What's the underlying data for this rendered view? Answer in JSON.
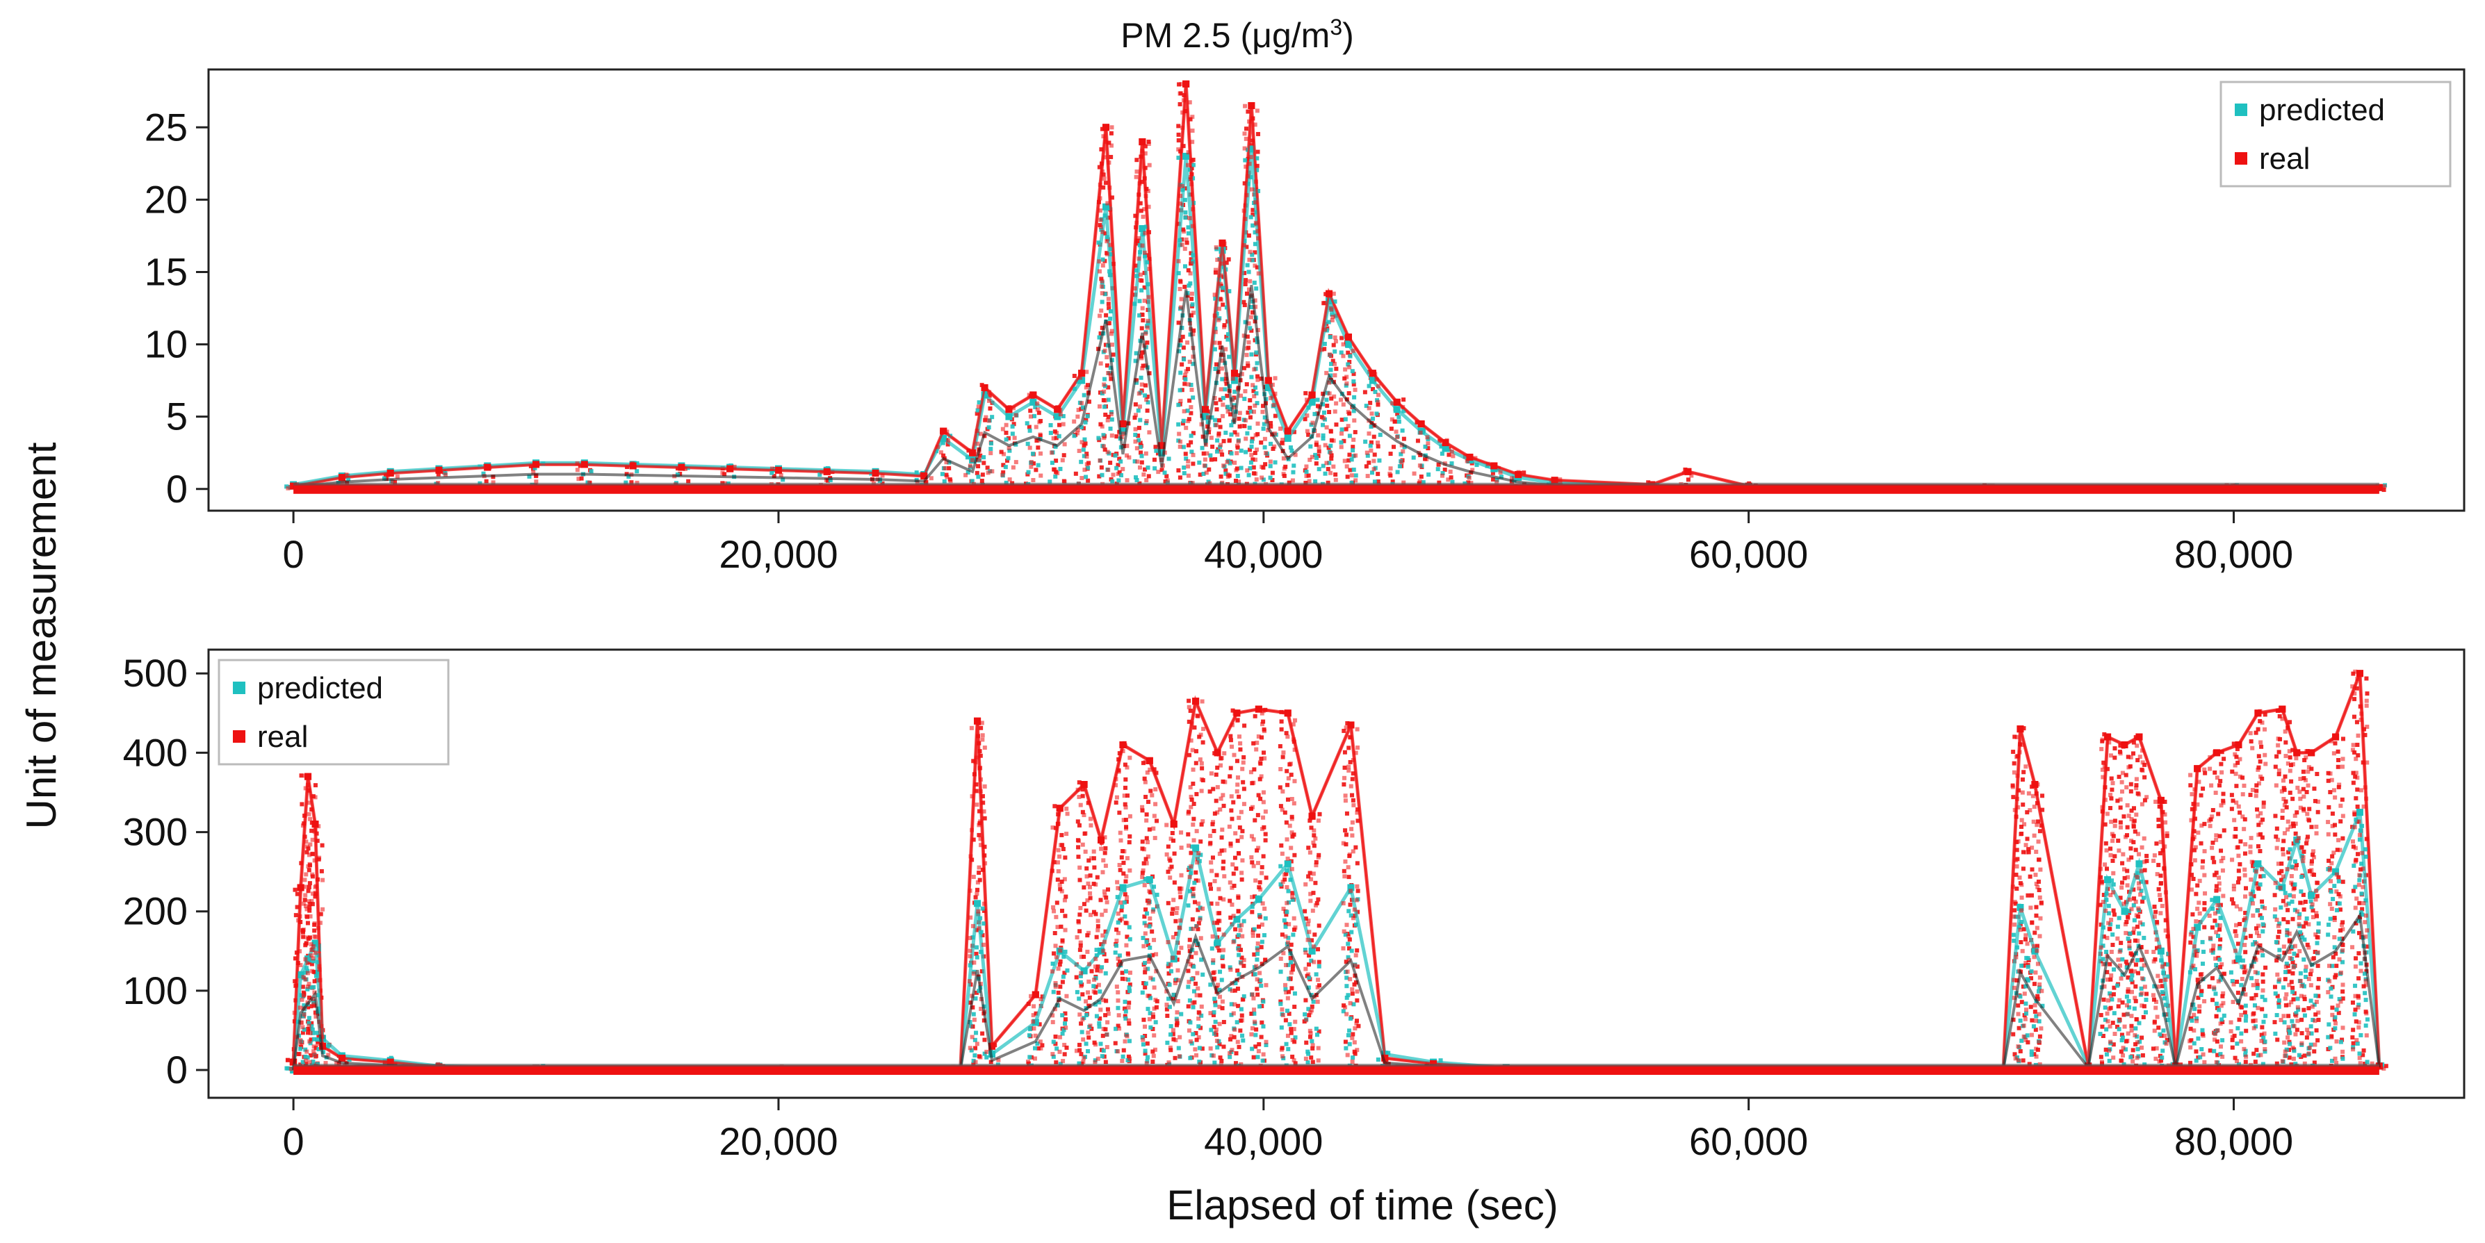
{
  "figure": {
    "title_main": "PM 2.5 (μg/m",
    "title_sup": "3",
    "title_close": ")",
    "ylabel": "Unit of measurement",
    "xlabel": "Elapsed of time (sec)"
  },
  "colors": {
    "predicted": "#1fc0c0",
    "real": "#ee1111",
    "axis": "#222222",
    "legend_border": "#bbbbbb",
    "dark": "#1a1a1a"
  },
  "chart_data": [
    {
      "type": "scatter",
      "title": "PM 2.5 (μg/m³)",
      "xlim": [
        -3500,
        89500
      ],
      "ylim": [
        -1.5,
        29
      ],
      "xticks": [
        0,
        20000,
        40000,
        60000,
        80000
      ],
      "xtick_labels": [
        "0",
        "20,000",
        "40,000",
        "60,000",
        "80,000"
      ],
      "yticks": [
        0,
        5,
        10,
        15,
        20,
        25
      ],
      "ytick_labels": [
        "0",
        "5",
        "10",
        "15",
        "20",
        "25"
      ],
      "legend": {
        "position": "top-right",
        "entries": [
          {
            "label": "predicted",
            "color": "#1fc0c0"
          },
          {
            "label": "real",
            "color": "#ee1111"
          }
        ]
      },
      "series": [
        {
          "name": "predicted",
          "x": [
            0,
            2000,
            4000,
            6000,
            8000,
            10000,
            12000,
            14000,
            16000,
            18000,
            20000,
            22000,
            24000,
            26000,
            26800,
            28000,
            28500,
            29500,
            30500,
            31500,
            32500,
            33500,
            34200,
            35000,
            35800,
            36800,
            37600,
            38300,
            38800,
            39500,
            40200,
            41000,
            42000,
            42700,
            43500,
            44500,
            45500,
            46500,
            47500,
            48500,
            49500,
            50500,
            52000,
            56000,
            60000,
            70000,
            80000,
            86000
          ],
          "y": [
            0.3,
            0.9,
            1.2,
            1.4,
            1.6,
            1.8,
            1.8,
            1.7,
            1.6,
            1.5,
            1.4,
            1.3,
            1.2,
            1.0,
            3.5,
            2.0,
            6.5,
            5.0,
            6.0,
            5.0,
            7.5,
            19.5,
            4.0,
            18.0,
            2.5,
            23.0,
            5.0,
            16.5,
            7.5,
            23.5,
            7.0,
            3.5,
            6.0,
            13.0,
            10.0,
            7.5,
            5.5,
            4.0,
            2.8,
            2.0,
            1.4,
            0.8,
            0.4,
            0.2,
            0.1,
            0.1,
            0.1,
            0.1
          ]
        },
        {
          "name": "real",
          "x": [
            0,
            2000,
            4000,
            6000,
            8000,
            10000,
            12000,
            14000,
            16000,
            18000,
            20000,
            22000,
            24000,
            26000,
            26800,
            28000,
            28500,
            29500,
            30500,
            31500,
            32500,
            33500,
            34200,
            35000,
            35800,
            36800,
            37600,
            38300,
            38800,
            39500,
            40200,
            41000,
            42000,
            42700,
            43500,
            44500,
            45500,
            46500,
            47500,
            48500,
            49500,
            50500,
            52000,
            56000,
            57500,
            60000,
            70000,
            80000,
            86000
          ],
          "y": [
            0.2,
            0.8,
            1.1,
            1.3,
            1.5,
            1.7,
            1.7,
            1.6,
            1.5,
            1.4,
            1.3,
            1.2,
            1.1,
            0.9,
            4.0,
            2.5,
            7.0,
            5.5,
            6.5,
            5.5,
            8.0,
            25.0,
            4.5,
            24.0,
            3.0,
            28.0,
            5.5,
            17.0,
            8.0,
            26.5,
            7.5,
            4.0,
            6.5,
            13.5,
            10.5,
            8.0,
            6.0,
            4.5,
            3.2,
            2.2,
            1.6,
            1.0,
            0.6,
            0.3,
            1.2,
            0.2,
            0.1,
            0.1,
            0.1
          ]
        }
      ]
    },
    {
      "type": "scatter",
      "title": "",
      "xlim": [
        -3500,
        89500
      ],
      "ylim": [
        -35,
        530
      ],
      "xticks": [
        0,
        20000,
        40000,
        60000,
        80000
      ],
      "xtick_labels": [
        "0",
        "20,000",
        "40,000",
        "60,000",
        "80,000"
      ],
      "yticks": [
        0,
        100,
        200,
        300,
        400,
        500
      ],
      "ytick_labels": [
        "0",
        "100",
        "200",
        "300",
        "400",
        "500"
      ],
      "legend": {
        "position": "top-left",
        "entries": [
          {
            "label": "predicted",
            "color": "#1fc0c0"
          },
          {
            "label": "real",
            "color": "#ee1111"
          }
        ]
      },
      "series": [
        {
          "name": "predicted",
          "x": [
            0,
            300,
            600,
            900,
            1200,
            2000,
            4000,
            6000,
            10000,
            20000,
            27500,
            28200,
            28800,
            30600,
            31600,
            32600,
            33300,
            34200,
            35300,
            36300,
            37200,
            38100,
            38900,
            39800,
            41000,
            42000,
            43600,
            45000,
            47000,
            50000,
            60000,
            70500,
            71200,
            71800,
            74000,
            74800,
            75500,
            76100,
            77000,
            77600,
            78500,
            79300,
            80200,
            81000,
            82000,
            82600,
            83200,
            84200,
            85200,
            86000
          ],
          "y": [
            0,
            120,
            140,
            160,
            40,
            18,
            12,
            5,
            2,
            1,
            1,
            210,
            20,
            60,
            150,
            125,
            150,
            230,
            240,
            140,
            280,
            160,
            190,
            215,
            260,
            150,
            230,
            20,
            10,
            3,
            1,
            1,
            205,
            150,
            5,
            240,
            200,
            260,
            150,
            5,
            180,
            215,
            140,
            260,
            230,
            290,
            220,
            250,
            325,
            5
          ]
        },
        {
          "name": "real",
          "x": [
            0,
            300,
            600,
            900,
            1200,
            2000,
            4000,
            6000,
            10000,
            20000,
            27500,
            28200,
            28800,
            30600,
            31600,
            32600,
            33300,
            34200,
            35300,
            36300,
            37200,
            38100,
            38900,
            39800,
            41000,
            42000,
            43600,
            45000,
            47000,
            50000,
            60000,
            70500,
            71200,
            71800,
            74000,
            74800,
            75500,
            76100,
            77000,
            77600,
            78500,
            79300,
            80200,
            81000,
            82000,
            82600,
            83200,
            84200,
            85200,
            86000
          ],
          "y": [
            10,
            230,
            370,
            310,
            30,
            15,
            10,
            4,
            2,
            1,
            1,
            440,
            30,
            95,
            330,
            360,
            290,
            410,
            390,
            310,
            465,
            400,
            450,
            455,
            450,
            320,
            435,
            15,
            8,
            2,
            1,
            1,
            430,
            360,
            5,
            420,
            410,
            420,
            340,
            5,
            380,
            400,
            410,
            450,
            455,
            400,
            400,
            420,
            500,
            5
          ]
        }
      ]
    }
  ]
}
